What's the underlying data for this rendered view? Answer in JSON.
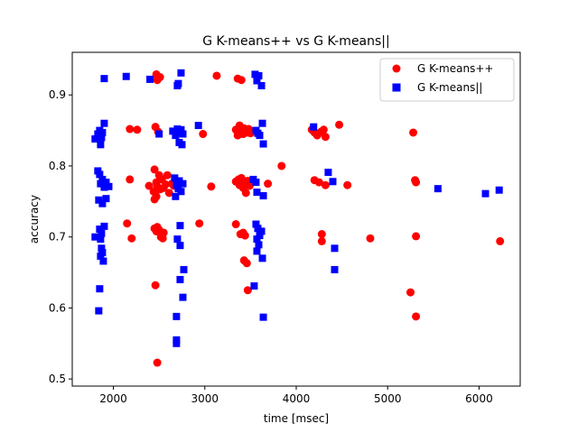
{
  "chart_data": {
    "type": "scatter",
    "title": "G K-means++ vs G K-means||",
    "xlabel": "time [msec]",
    "ylabel": "accuracy",
    "xlim": [
      1550,
      6450
    ],
    "ylim": [
      0.49,
      0.96
    ],
    "xticks": [
      2000,
      3000,
      4000,
      5000,
      6000
    ],
    "yticks": [
      0.5,
      0.6,
      0.7,
      0.8,
      0.9
    ],
    "legend": "top-right",
    "grid": false,
    "series": [
      {
        "name": "G K-means++",
        "marker": "circle",
        "color": "#ff0000",
        "points": [
          [
            2470,
            0.929
          ],
          [
            2480,
            0.921
          ],
          [
            2510,
            0.925
          ],
          [
            3130,
            0.927
          ],
          [
            3360,
            0.923
          ],
          [
            3400,
            0.921
          ],
          [
            2180,
            0.852
          ],
          [
            2260,
            0.851
          ],
          [
            2460,
            0.855
          ],
          [
            2490,
            0.848
          ],
          [
            2980,
            0.845
          ],
          [
            3340,
            0.851
          ],
          [
            3360,
            0.843
          ],
          [
            3380,
            0.857
          ],
          [
            3400,
            0.848
          ],
          [
            3420,
            0.845
          ],
          [
            3430,
            0.853
          ],
          [
            3440,
            0.849
          ],
          [
            3460,
            0.847
          ],
          [
            3480,
            0.852
          ],
          [
            3500,
            0.846
          ],
          [
            4170,
            0.851
          ],
          [
            4200,
            0.847
          ],
          [
            4230,
            0.843
          ],
          [
            4270,
            0.848
          ],
          [
            4300,
            0.851
          ],
          [
            4320,
            0.841
          ],
          [
            4470,
            0.858
          ],
          [
            5280,
            0.847
          ],
          [
            2180,
            0.781
          ],
          [
            2390,
            0.772
          ],
          [
            2440,
            0.764
          ],
          [
            2450,
            0.795
          ],
          [
            2470,
            0.777
          ],
          [
            2480,
            0.771
          ],
          [
            2500,
            0.787
          ],
          [
            2510,
            0.767
          ],
          [
            2530,
            0.781
          ],
          [
            2550,
            0.769
          ],
          [
            2570,
            0.774
          ],
          [
            2590,
            0.787
          ],
          [
            2610,
            0.762
          ],
          [
            2640,
            0.775
          ],
          [
            2660,
            0.772
          ],
          [
            2700,
            0.779
          ],
          [
            3070,
            0.771
          ],
          [
            3340,
            0.778
          ],
          [
            3370,
            0.781
          ],
          [
            3380,
            0.773
          ],
          [
            3400,
            0.783
          ],
          [
            3420,
            0.769
          ],
          [
            3430,
            0.776
          ],
          [
            3450,
            0.762
          ],
          [
            3470,
            0.779
          ],
          [
            3490,
            0.772
          ],
          [
            3690,
            0.775
          ],
          [
            3840,
            0.8
          ],
          [
            4200,
            0.78
          ],
          [
            4250,
            0.777
          ],
          [
            4320,
            0.773
          ],
          [
            4560,
            0.773
          ],
          [
            5300,
            0.78
          ],
          [
            5310,
            0.777
          ],
          [
            2450,
            0.753
          ],
          [
            2470,
            0.757
          ],
          [
            2150,
            0.719
          ],
          [
            2200,
            0.698
          ],
          [
            2450,
            0.712
          ],
          [
            2470,
            0.708
          ],
          [
            2480,
            0.714
          ],
          [
            2500,
            0.71
          ],
          [
            2520,
            0.7
          ],
          [
            2550,
            0.706
          ],
          [
            2540,
            0.698
          ],
          [
            2940,
            0.719
          ],
          [
            3340,
            0.718
          ],
          [
            3390,
            0.704
          ],
          [
            3420,
            0.706
          ],
          [
            3440,
            0.702
          ],
          [
            3430,
            0.667
          ],
          [
            3460,
            0.663
          ],
          [
            3470,
            0.625
          ],
          [
            4280,
            0.704
          ],
          [
            4280,
            0.694
          ],
          [
            4810,
            0.698
          ],
          [
            5310,
            0.701
          ],
          [
            6230,
            0.694
          ],
          [
            2460,
            0.632
          ],
          [
            5250,
            0.622
          ],
          [
            5310,
            0.588
          ],
          [
            2480,
            0.523
          ]
        ]
      },
      {
        "name": "G K-means||",
        "marker": "square",
        "color": "#0000ff",
        "points": [
          [
            1900,
            0.923
          ],
          [
            2140,
            0.926
          ],
          [
            2400,
            0.922
          ],
          [
            2700,
            0.913
          ],
          [
            2740,
            0.931
          ],
          [
            2710,
            0.916
          ],
          [
            3550,
            0.929
          ],
          [
            3590,
            0.927
          ],
          [
            3620,
            0.913
          ],
          [
            3570,
            0.92
          ],
          [
            1800,
            0.838
          ],
          [
            1830,
            0.845
          ],
          [
            1850,
            0.85
          ],
          [
            1870,
            0.84
          ],
          [
            1880,
            0.847
          ],
          [
            1900,
            0.86
          ],
          [
            1860,
            0.83
          ],
          [
            2500,
            0.845
          ],
          [
            2650,
            0.849
          ],
          [
            2680,
            0.843
          ],
          [
            2700,
            0.852
          ],
          [
            2720,
            0.847
          ],
          [
            2740,
            0.851
          ],
          [
            2760,
            0.845
          ],
          [
            2720,
            0.833
          ],
          [
            2750,
            0.83
          ],
          [
            2930,
            0.857
          ],
          [
            3560,
            0.85
          ],
          [
            3580,
            0.846
          ],
          [
            3600,
            0.843
          ],
          [
            3630,
            0.86
          ],
          [
            3640,
            0.831
          ],
          [
            4190,
            0.855
          ],
          [
            1830,
            0.793
          ],
          [
            1850,
            0.788
          ],
          [
            1860,
            0.775
          ],
          [
            1880,
            0.781
          ],
          [
            1900,
            0.77
          ],
          [
            1920,
            0.777
          ],
          [
            1950,
            0.771
          ],
          [
            1840,
            0.752
          ],
          [
            1880,
            0.747
          ],
          [
            1920,
            0.754
          ],
          [
            2670,
            0.783
          ],
          [
            2690,
            0.773
          ],
          [
            2710,
            0.768
          ],
          [
            2720,
            0.779
          ],
          [
            2740,
            0.764
          ],
          [
            2760,
            0.775
          ],
          [
            2680,
            0.757
          ],
          [
            3530,
            0.781
          ],
          [
            3560,
            0.777
          ],
          [
            3570,
            0.763
          ],
          [
            3640,
            0.758
          ],
          [
            4350,
            0.791
          ],
          [
            4400,
            0.778
          ],
          [
            5550,
            0.768
          ],
          [
            6070,
            0.761
          ],
          [
            6220,
            0.766
          ],
          [
            1800,
            0.7
          ],
          [
            1850,
            0.711
          ],
          [
            1870,
            0.705
          ],
          [
            1900,
            0.715
          ],
          [
            1860,
            0.697
          ],
          [
            1870,
            0.684
          ],
          [
            1880,
            0.678
          ],
          [
            1860,
            0.673
          ],
          [
            1890,
            0.666
          ],
          [
            2700,
            0.697
          ],
          [
            2730,
            0.688
          ],
          [
            2730,
            0.716
          ],
          [
            2730,
            0.64
          ],
          [
            2770,
            0.654
          ],
          [
            2760,
            0.615
          ],
          [
            2690,
            0.588
          ],
          [
            2690,
            0.555
          ],
          [
            2690,
            0.55
          ],
          [
            3560,
            0.718
          ],
          [
            3580,
            0.712
          ],
          [
            3600,
            0.702
          ],
          [
            3570,
            0.697
          ],
          [
            3590,
            0.689
          ],
          [
            3620,
            0.708
          ],
          [
            3570,
            0.68
          ],
          [
            3630,
            0.67
          ],
          [
            3540,
            0.631
          ],
          [
            3640,
            0.587
          ],
          [
            4420,
            0.684
          ],
          [
            4420,
            0.654
          ],
          [
            1850,
            0.627
          ],
          [
            1840,
            0.596
          ]
        ]
      }
    ]
  }
}
